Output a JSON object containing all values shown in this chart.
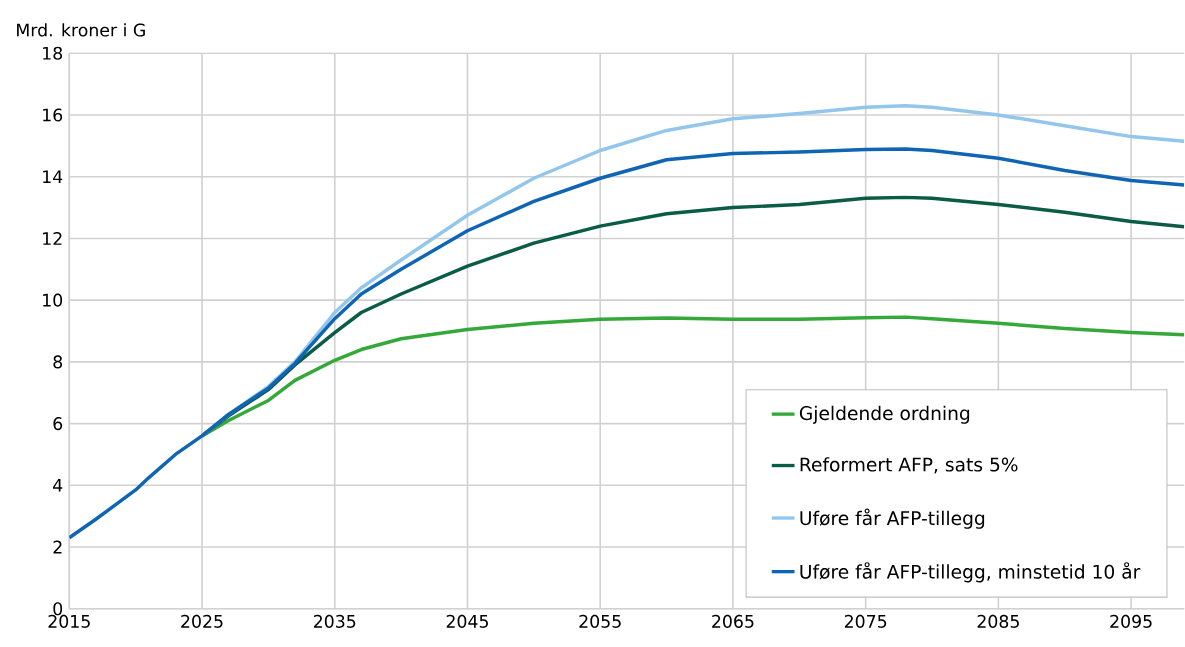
{
  "chart_data": {
    "type": "line",
    "ylabel": "Mrd. kroner i G",
    "x": [
      2015,
      2017,
      2020,
      2021,
      2023,
      2025,
      2027,
      2030,
      2032,
      2035,
      2037,
      2040,
      2045,
      2050,
      2055,
      2060,
      2065,
      2070,
      2075,
      2078,
      2080,
      2085,
      2090,
      2095,
      2099
    ],
    "series": [
      {
        "name": "Gjeldende ordning",
        "color": "#35a83a",
        "values": [
          null,
          null,
          null,
          null,
          null,
          5.6,
          6.1,
          6.75,
          7.4,
          8.05,
          8.4,
          8.75,
          9.05,
          9.25,
          9.38,
          9.42,
          9.38,
          9.38,
          9.43,
          9.45,
          9.4,
          9.25,
          9.08,
          8.95,
          8.88
        ]
      },
      {
        "name": "Reformert AFP, sats 5%",
        "color": "#0b5c45",
        "values": [
          null,
          null,
          null,
          null,
          null,
          5.6,
          6.25,
          7.1,
          7.9,
          8.95,
          9.6,
          10.2,
          11.1,
          11.85,
          12.4,
          12.8,
          13.0,
          13.1,
          13.3,
          13.33,
          13.3,
          13.1,
          12.85,
          12.55,
          12.38
        ]
      },
      {
        "name": "Uføre får AFP-tillegg",
        "color": "#92c6ec",
        "values": [
          null,
          null,
          null,
          null,
          null,
          5.6,
          6.3,
          7.2,
          8.0,
          9.6,
          10.4,
          11.3,
          12.75,
          13.95,
          14.85,
          15.5,
          15.88,
          16.05,
          16.25,
          16.3,
          16.25,
          16.0,
          15.65,
          15.3,
          15.15
        ]
      },
      {
        "name": "Uføre får AFP-tillegg, minstetid 10 år",
        "color": "#0f65b4",
        "values": [
          2.3,
          2.9,
          3.85,
          4.25,
          5.0,
          5.6,
          6.3,
          7.15,
          7.95,
          9.4,
          10.2,
          11.0,
          12.25,
          13.2,
          13.95,
          14.55,
          14.75,
          14.8,
          14.88,
          14.9,
          14.85,
          14.6,
          14.2,
          13.88,
          13.73
        ]
      }
    ],
    "xlim": [
      2015,
      2099
    ],
    "xticks": [
      2015,
      2025,
      2035,
      2045,
      2055,
      2065,
      2075,
      2085,
      2095
    ],
    "ylim": [
      0,
      18
    ],
    "yticks": [
      0,
      2,
      4,
      6,
      8,
      10,
      12,
      14,
      16,
      18
    ],
    "grid": true,
    "legend": "bottom right",
    "marker": "none",
    "line_style": "solid"
  }
}
